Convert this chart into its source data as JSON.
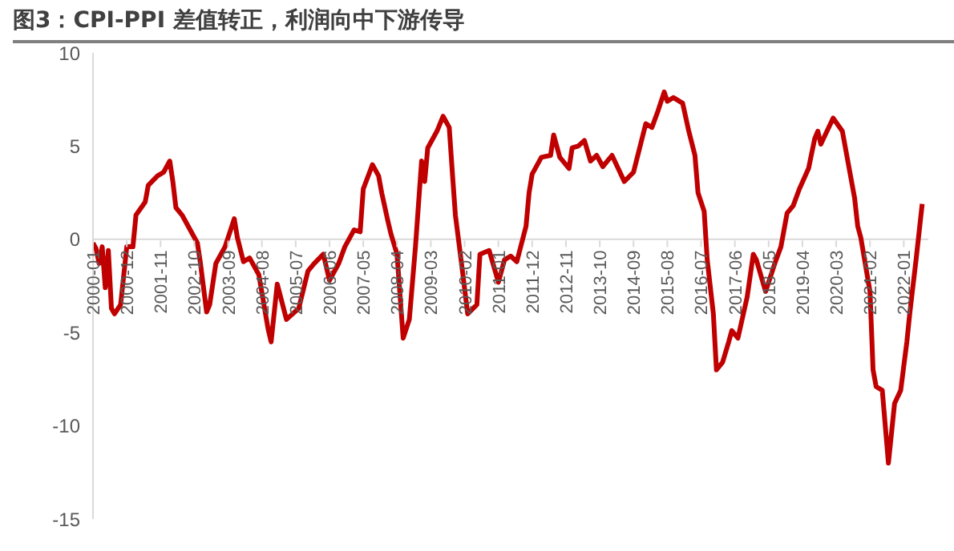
{
  "chart_data": {
    "type": "line",
    "title": "图3：CPI-PPI 差值转正，利润向中下游传导",
    "x": [
      "2000-01",
      "2000-02",
      "2000-03",
      "2000-04",
      "2000-05",
      "2000-06",
      "2000-07",
      "2000-08",
      "2000-10",
      "2000-12",
      "2001-02",
      "2001-03",
      "2001-06",
      "2001-07",
      "2001-10",
      "2001-12",
      "2002-02",
      "2002-03",
      "2002-04",
      "2002-06",
      "2002-11",
      "2002-12",
      "2003-02",
      "2003-03",
      "2003-05",
      "2003-08",
      "2003-11",
      "2003-12",
      "2004-02",
      "2004-04",
      "2004-07",
      "2004-10",
      "2004-11",
      "2005-01",
      "2005-04",
      "2005-08",
      "2005-11",
      "2006-01",
      "2006-04",
      "2006-06",
      "2006-09",
      "2006-11",
      "2007-02",
      "2007-04",
      "2007-05",
      "2007-08",
      "2007-10",
      "2007-11",
      "2008-01",
      "2008-02",
      "2008-04",
      "2008-06",
      "2008-08",
      "2008-10",
      "2008-11",
      "2008-12",
      "2009-01",
      "2009-02",
      "2009-05",
      "2009-07",
      "2009-09",
      "2009-10",
      "2009-11",
      "2010-01",
      "2010-03",
      "2010-06",
      "2010-07",
      "2010-10",
      "2011-01",
      "2011-03",
      "2011-05",
      "2011-07",
      "2011-10",
      "2011-11",
      "2011-12",
      "2012-01",
      "2012-03",
      "2012-06",
      "2012-07",
      "2012-09",
      "2012-12",
      "2013-01",
      "2013-03",
      "2013-05",
      "2013-07",
      "2013-09",
      "2013-11",
      "2014-02",
      "2014-04",
      "2014-06",
      "2014-09",
      "2014-11",
      "2015-01",
      "2015-03",
      "2015-05",
      "2015-07",
      "2015-08",
      "2015-10",
      "2016-01",
      "2016-03",
      "2016-05",
      "2016-06",
      "2016-08",
      "2016-09",
      "2016-11",
      "2016-12",
      "2017-02",
      "2017-04",
      "2017-05",
      "2017-07",
      "2017-10",
      "2017-12",
      "2018-01",
      "2018-04",
      "2018-07",
      "2018-09",
      "2018-11",
      "2019-01",
      "2019-03",
      "2019-06",
      "2019-08",
      "2019-09",
      "2019-10",
      "2020-02",
      "2020-05",
      "2020-07",
      "2020-09",
      "2020-10",
      "2020-11",
      "2021-02",
      "2021-03",
      "2021-04",
      "2021-06",
      "2021-08",
      "2021-10",
      "2021-12",
      "2022-02",
      "2022-03",
      "2022-05",
      "2022-07"
    ],
    "series": [
      {
        "color": "#c00000",
        "values": [
          -0.2,
          -0.5,
          -1.3,
          -0.4,
          -2.6,
          -0.6,
          -3.7,
          -4.0,
          -3.5,
          -0.4,
          -0.4,
          1.3,
          2.0,
          2.9,
          3.4,
          3.6,
          4.2,
          3.1,
          1.7,
          1.3,
          -0.2,
          -1.3,
          -3.9,
          -3.5,
          -1.3,
          -0.4,
          1.1,
          0.1,
          -1.2,
          -1.0,
          -1.9,
          -4.8,
          -5.5,
          -2.4,
          -4.3,
          -3.7,
          -1.7,
          -1.3,
          -0.8,
          -2.2,
          -1.3,
          -0.4,
          0.5,
          0.4,
          2.7,
          4.0,
          3.4,
          2.5,
          1.0,
          0.3,
          -0.8,
          -5.3,
          -4.3,
          -0.4,
          1.9,
          4.2,
          3.1,
          4.9,
          5.8,
          6.6,
          6.0,
          3.6,
          1.3,
          -1.3,
          -4.0,
          -3.5,
          -0.8,
          -0.6,
          -2.3,
          -1.1,
          -0.9,
          -1.2,
          0.7,
          2.5,
          3.5,
          3.8,
          4.4,
          4.5,
          5.6,
          4.4,
          3.8,
          4.9,
          5.0,
          5.3,
          4.2,
          4.5,
          3.9,
          4.5,
          3.8,
          3.1,
          3.6,
          4.9,
          6.2,
          6.0,
          6.9,
          7.9,
          7.4,
          7.6,
          7.3,
          5.8,
          4.5,
          2.5,
          1.5,
          -1.1,
          -4.0,
          -7.0,
          -6.6,
          -5.5,
          -4.9,
          -5.3,
          -3.1,
          -0.8,
          -1.1,
          -2.8,
          -1.3,
          -0.4,
          1.4,
          1.8,
          2.7,
          3.8,
          5.4,
          5.8,
          5.1,
          6.5,
          5.8,
          4.0,
          2.2,
          0.7,
          0.1,
          -2.8,
          -7.0,
          -7.9,
          -8.1,
          -12.0,
          -8.8,
          -8.1,
          -5.5,
          -3.9,
          -1.1,
          1.9
        ]
      }
    ],
    "xlim": [
      "2000-01",
      "2022-09"
    ],
    "xticks": [
      "2000-01",
      "2000-12",
      "2001-11",
      "2002-10",
      "2003-09",
      "2004-08",
      "2005-07",
      "2006-06",
      "2007-05",
      "2008-04",
      "2009-03",
      "2010-02",
      "2011-01",
      "2011-12",
      "2012-11",
      "2013-10",
      "2014-09",
      "2015-08",
      "2016-07",
      "2017-06",
      "2018-05",
      "2019-04",
      "2020-03",
      "2021-02",
      "2022-01"
    ],
    "ylim": [
      -15,
      10
    ],
    "yticks": [
      -15,
      -10,
      -5,
      0,
      5,
      10
    ],
    "grid": false,
    "legend": false,
    "marker": "none",
    "line_style": "solid"
  }
}
